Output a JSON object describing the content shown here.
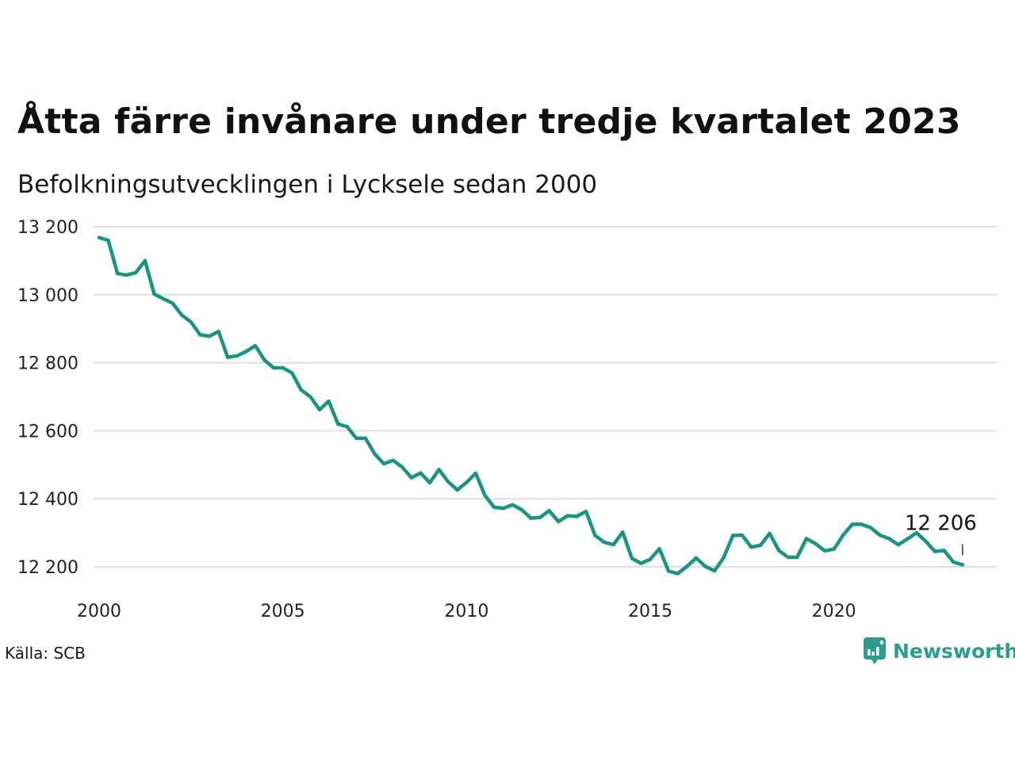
{
  "title": "Åtta färre invånare under tredje kvartalet 2023",
  "subtitle": "Befolkningsutvecklingen i Lycksele sedan 2000",
  "source": "Källa: SCB",
  "logo_text": "Newsworthy",
  "colors": {
    "line": "#1a9482",
    "grid": "#dddde6",
    "logo": "#2a9d8f"
  },
  "chart_data": {
    "type": "line",
    "title": "Åtta färre invånare under tredje kvartalet 2023",
    "subtitle": "Befolkningsutvecklingen i Lycksele sedan 2000",
    "xlabel": "",
    "ylabel": "",
    "xlim": [
      2000,
      2024
    ],
    "ylim": [
      12180,
      13200
    ],
    "x_ticks": [
      2000,
      2005,
      2010,
      2015,
      2020
    ],
    "y_ticks": [
      12200,
      12400,
      12600,
      12800,
      13000,
      13200
    ],
    "y_tick_labels": [
      "12 200",
      "12 400",
      "12 600",
      "12 800",
      "13 000",
      "13 200"
    ],
    "grid": true,
    "series": [
      {
        "x": [
          2000.0,
          2000.25,
          2000.5,
          2000.75,
          2001.0,
          2001.25,
          2001.5,
          2001.75,
          2002.0,
          2002.25,
          2002.5,
          2002.75,
          2003.0,
          2003.25,
          2003.5,
          2003.75,
          2004.0,
          2004.25,
          2004.5,
          2004.75,
          2005.0,
          2005.25,
          2005.5,
          2005.75,
          2006.0,
          2006.25,
          2006.5,
          2006.75,
          2007.0,
          2007.25,
          2007.5,
          2007.75,
          2008.0,
          2008.25,
          2008.5,
          2008.75,
          2009.0,
          2009.25,
          2009.5,
          2009.75,
          2010.0,
          2010.25,
          2010.5,
          2010.75,
          2011.0,
          2011.25,
          2011.5,
          2011.75,
          2012.0,
          2012.25,
          2012.5,
          2012.75,
          2013.0,
          2013.25,
          2013.5,
          2013.75,
          2014.0,
          2014.25,
          2014.5,
          2014.75,
          2015.0,
          2015.25,
          2015.5,
          2015.75,
          2016.0,
          2016.25,
          2016.5,
          2016.75,
          2017.0,
          2017.25,
          2017.5,
          2017.75,
          2018.0,
          2018.25,
          2018.5,
          2018.75,
          2019.0,
          2019.25,
          2019.5,
          2019.75,
          2020.0,
          2020.25,
          2020.5,
          2020.75,
          2021.0,
          2021.25,
          2021.5,
          2021.75,
          2022.0,
          2022.25,
          2022.5,
          2022.75,
          2023.0,
          2023.25,
          2023.5
        ],
        "y": [
          13168,
          13160,
          13062,
          13058,
          13065,
          13100,
          13002,
          12988,
          12975,
          12940,
          12920,
          12882,
          12878,
          12892,
          12816,
          12820,
          12833,
          12850,
          12808,
          12785,
          12785,
          12770,
          12720,
          12700,
          12662,
          12687,
          12620,
          12612,
          12578,
          12578,
          12532,
          12503,
          12513,
          12493,
          12462,
          12476,
          12447,
          12486,
          12450,
          12426,
          12448,
          12475,
          12410,
          12375,
          12372,
          12382,
          12368,
          12343,
          12345,
          12365,
          12333,
          12350,
          12348,
          12363,
          12292,
          12272,
          12265,
          12302,
          12225,
          12210,
          12222,
          12253,
          12187,
          12180,
          12201,
          12226,
          12201,
          12188,
          12227,
          12292,
          12293,
          12258,
          12263,
          12298,
          12248,
          12228,
          12228,
          12283,
          12268,
          12247,
          12252,
          12293,
          12325,
          12325,
          12315,
          12293,
          12283,
          12265,
          12282,
          12300,
          12275,
          12245,
          12248,
          12214,
          12206
        ]
      }
    ],
    "annotations": [
      {
        "x": 2023.5,
        "y": 12206,
        "text": "12 206"
      }
    ]
  }
}
